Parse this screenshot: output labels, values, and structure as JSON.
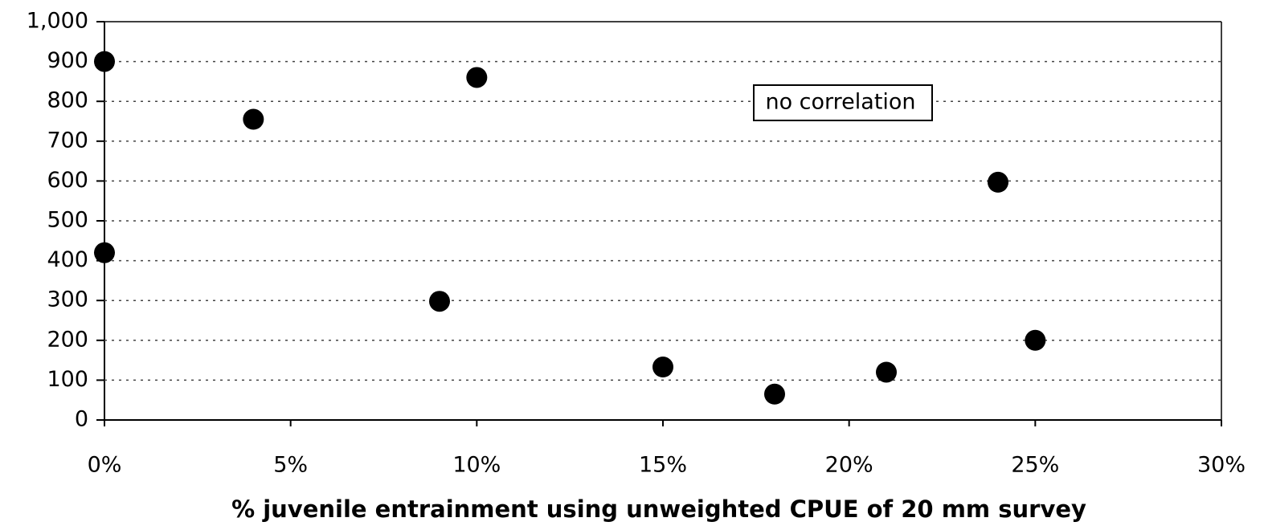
{
  "chart_data": {
    "type": "scatter",
    "xlabel": "% juvenile entrainment using unweighted CPUE of 20 mm survey",
    "annotation": "no correlation",
    "x": [
      0,
      0,
      4,
      9,
      10,
      15,
      18,
      21,
      24,
      25
    ],
    "values": [
      900,
      420,
      755,
      298,
      860,
      133,
      65,
      120,
      597,
      200
    ],
    "color": "#000000",
    "xlim": [
      0,
      30
    ],
    "xticks": [
      {
        "value": 0,
        "label": "0%"
      },
      {
        "value": 5,
        "label": "5%"
      },
      {
        "value": 10,
        "label": "10%"
      },
      {
        "value": 15,
        "label": "15%"
      },
      {
        "value": 20,
        "label": "20%"
      },
      {
        "value": 25,
        "label": "25%"
      },
      {
        "value": 30,
        "label": "30%"
      }
    ],
    "ylim": [
      0,
      1000
    ],
    "yticks": [
      0,
      100,
      200,
      300,
      400,
      500,
      600,
      700,
      800,
      900,
      {
        "value": 1000,
        "label": "1,000"
      }
    ],
    "grid": true
  }
}
